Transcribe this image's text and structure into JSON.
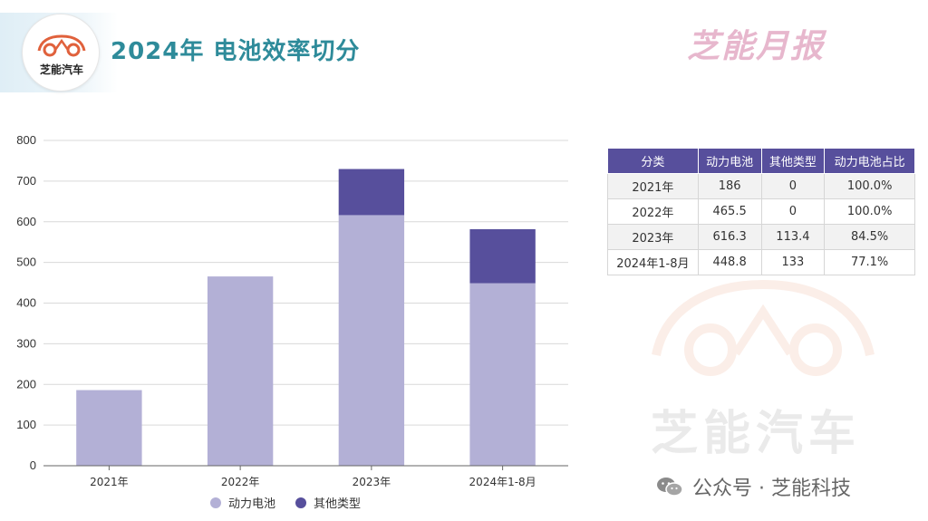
{
  "header": {
    "logo_text": "芝能汽车",
    "title": "2024年 电池效率切分",
    "brand_mark": "芝能月报"
  },
  "colors": {
    "title": "#2e8b9a",
    "power_battery": "#b3b0d6",
    "other_types": "#574f9c",
    "table_header": "#574f9c"
  },
  "chart_data": {
    "type": "bar",
    "stacked": true,
    "categories": [
      "2021年",
      "2022年",
      "2023年",
      "2024年1-8月"
    ],
    "series": [
      {
        "name": "动力电池",
        "values": [
          186,
          465.5,
          616.3,
          448.8
        ]
      },
      {
        "name": "其他类型",
        "values": [
          0,
          0,
          113.4,
          133
        ]
      }
    ],
    "ylim": [
      0,
      800
    ],
    "yticks": [
      "0",
      "100",
      "200",
      "300",
      "400",
      "500",
      "600",
      "700",
      "800"
    ],
    "grid": true,
    "legend_position": "bottom"
  },
  "table": {
    "headers": [
      "分类",
      "动力电池",
      "其他类型",
      "动力电池占比"
    ],
    "rows": [
      [
        "2021年",
        "186",
        "0",
        "100.0%"
      ],
      [
        "2022年",
        "465.5",
        "0",
        "100.0%"
      ],
      [
        "2023年",
        "616.3",
        "113.4",
        "84.5%"
      ],
      [
        "2024年1-8月",
        "448.8",
        "133",
        "77.1%"
      ]
    ]
  },
  "watermark": {
    "text": "芝能汽车",
    "source": "公众号 · 芝能科技",
    "icon": "wechat-icon"
  }
}
